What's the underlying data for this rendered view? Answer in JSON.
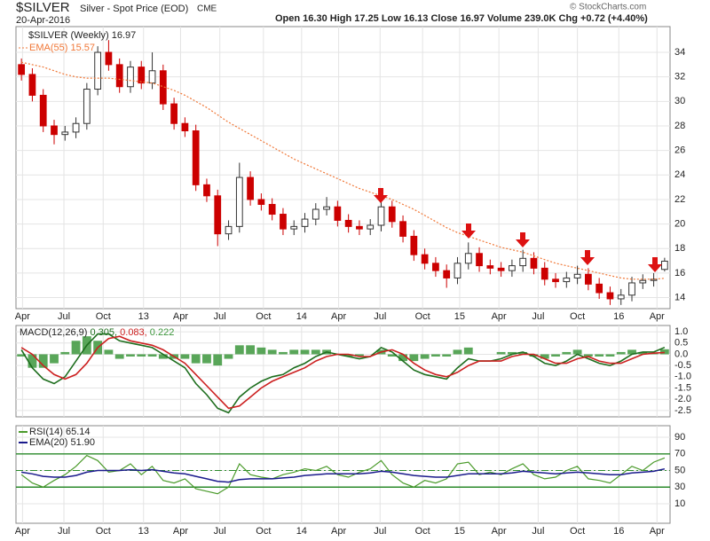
{
  "chart_data": [
    {
      "type": "candlestick",
      "title": "$SILVER",
      "subtitle": "Silver - Spot Price (EOD)",
      "exchange": "CME",
      "date": "20-Apr-2016",
      "quote": "Open 16.30  High 17.25  Low 16.13  Close 16.97  Volume 239.0K  Chg +0.72 (+4.40%)",
      "credit": "© StockCharts.com",
      "legend": "$SILVER (Weekly) 16.97",
      "color_down": "#cc0000",
      "color_up": "#333333",
      "open": [
        33.0,
        32.2,
        30.5,
        28.0,
        27.3,
        27.5,
        28.2,
        31.0,
        34.0,
        33.0,
        31.2,
        32.8,
        31.5,
        32.5,
        29.8,
        28.2,
        27.6,
        23.2,
        22.3,
        19.2,
        19.8,
        23.8,
        22.0,
        21.6,
        20.8,
        19.6,
        19.8,
        20.4,
        21.2,
        21.4,
        20.3,
        19.8,
        19.6,
        19.9,
        21.4,
        20.2,
        19.0,
        17.5,
        16.8,
        16.2,
        15.6,
        16.8,
        17.6,
        16.6,
        16.4,
        16.2,
        16.6,
        17.2,
        16.4,
        15.5,
        15.3,
        15.6,
        15.9,
        15.1,
        14.4,
        13.9,
        14.2,
        15.2,
        15.4,
        16.3
      ],
      "high": [
        33.5,
        32.7,
        31.0,
        28.5,
        28.0,
        28.7,
        31.5,
        34.5,
        35.0,
        33.5,
        33.3,
        33.3,
        34.0,
        33.0,
        30.3,
        28.7,
        28.1,
        23.7,
        22.8,
        20.3,
        25.0,
        24.3,
        22.5,
        22.1,
        21.3,
        20.3,
        20.9,
        21.7,
        22.2,
        21.9,
        20.8,
        20.3,
        20.4,
        21.9,
        21.9,
        20.7,
        19.5,
        18.0,
        17.3,
        16.7,
        17.3,
        18.5,
        18.1,
        17.1,
        16.9,
        17.1,
        17.9,
        17.7,
        16.9,
        16.0,
        16.1,
        16.6,
        16.4,
        15.6,
        14.9,
        14.7,
        15.7,
        15.9,
        16.0,
        17.25
      ],
      "low": [
        31.7,
        30.0,
        27.5,
        26.5,
        26.8,
        27.0,
        27.7,
        30.5,
        32.5,
        30.7,
        30.7,
        31.0,
        31.0,
        29.3,
        27.7,
        27.1,
        22.7,
        21.8,
        18.2,
        18.7,
        19.3,
        21.5,
        21.1,
        20.3,
        19.1,
        19.1,
        19.3,
        19.9,
        20.7,
        19.8,
        19.3,
        19.1,
        19.1,
        19.4,
        19.7,
        18.5,
        17.0,
        16.3,
        15.7,
        14.8,
        15.1,
        16.3,
        16.1,
        15.9,
        15.7,
        15.7,
        16.1,
        15.9,
        15.0,
        14.8,
        14.8,
        15.1,
        14.6,
        13.9,
        13.4,
        13.4,
        13.7,
        14.7,
        14.9,
        16.13
      ],
      "close": [
        32.2,
        30.5,
        28.0,
        27.3,
        27.5,
        28.2,
        31.0,
        34.0,
        33.0,
        31.2,
        32.8,
        31.5,
        32.5,
        29.8,
        28.2,
        27.6,
        23.2,
        22.3,
        19.2,
        19.8,
        23.8,
        22.0,
        21.6,
        20.8,
        19.6,
        19.8,
        20.4,
        21.2,
        21.4,
        20.3,
        19.8,
        19.6,
        19.9,
        21.4,
        20.2,
        19.0,
        17.5,
        16.8,
        16.2,
        15.6,
        16.8,
        17.6,
        16.6,
        16.4,
        16.2,
        16.6,
        17.2,
        16.4,
        15.5,
        15.3,
        15.6,
        15.9,
        15.1,
        14.4,
        13.9,
        14.2,
        15.2,
        15.4,
        15.5,
        16.97
      ],
      "series": [
        {
          "name": "EMA(55) 15.57",
          "color": "#f07838",
          "dash": true,
          "values": [
            33.2,
            33.0,
            32.8,
            32.5,
            32.2,
            32.0,
            31.9,
            31.9,
            31.9,
            31.8,
            31.7,
            31.6,
            31.5,
            31.2,
            30.9,
            30.5,
            30.0,
            29.5,
            28.9,
            28.3,
            27.8,
            27.3,
            26.8,
            26.3,
            25.8,
            25.3,
            24.9,
            24.5,
            24.1,
            23.7,
            23.3,
            22.9,
            22.6,
            22.3,
            22.0,
            21.6,
            21.2,
            20.7,
            20.2,
            19.7,
            19.3,
            19.0,
            18.7,
            18.4,
            18.1,
            17.9,
            17.7,
            17.4,
            17.1,
            16.8,
            16.6,
            16.4,
            16.2,
            16.0,
            15.8,
            15.6,
            15.5,
            15.5,
            15.5,
            15.57
          ]
        }
      ],
      "xlim": [
        0,
        60
      ],
      "xticks": [
        {
          "value": 0.6,
          "label": "Apr"
        },
        {
          "value": 4.4,
          "label": "Jul"
        },
        {
          "value": 8.0,
          "label": "Oct"
        },
        {
          "value": 11.7,
          "label": "13"
        },
        {
          "value": 15.1,
          "label": "Apr"
        },
        {
          "value": 18.7,
          "label": "Jul"
        },
        {
          "value": 22.7,
          "label": "Oct"
        },
        {
          "value": 26.2,
          "label": "14"
        },
        {
          "value": 29.6,
          "label": "Apr"
        },
        {
          "value": 33.4,
          "label": "Jul"
        },
        {
          "value": 37.3,
          "label": "Oct"
        },
        {
          "value": 40.7,
          "label": "15"
        },
        {
          "value": 44.3,
          "label": "Apr"
        },
        {
          "value": 47.9,
          "label": "Jul"
        },
        {
          "value": 51.5,
          "label": "Oct"
        },
        {
          "value": 55.3,
          "label": "16"
        },
        {
          "value": 58.8,
          "label": "Apr"
        }
      ],
      "ylim": [
        13.1,
        36.1
      ],
      "yticks": [
        14,
        16,
        18,
        20,
        22,
        24,
        26,
        28,
        30,
        32,
        34
      ],
      "grid": true
    },
    {
      "type": "macd",
      "legend": "MACD(12,26,9)",
      "legend_values": [
        "0.305,",
        "0.083,",
        "0.222"
      ],
      "series": [
        {
          "name": "MACD",
          "color": "#1e6e1e",
          "type": "line",
          "values": [
            0.2,
            -0.6,
            -1.1,
            -1.3,
            -1.0,
            -0.3,
            0.4,
            0.9,
            0.9,
            0.6,
            0.5,
            0.4,
            0.3,
            0.0,
            -0.3,
            -0.6,
            -1.3,
            -1.8,
            -2.4,
            -2.6,
            -1.9,
            -1.5,
            -1.2,
            -1.0,
            -0.9,
            -0.6,
            -0.4,
            -0.1,
            0.1,
            0.0,
            -0.1,
            -0.2,
            -0.1,
            0.3,
            0.1,
            -0.3,
            -0.7,
            -0.9,
            -1.0,
            -1.1,
            -0.6,
            -0.2,
            -0.3,
            -0.3,
            -0.2,
            0.0,
            0.1,
            -0.1,
            -0.4,
            -0.5,
            -0.3,
            0.0,
            -0.2,
            -0.4,
            -0.5,
            -0.3,
            0.0,
            0.1,
            0.1,
            0.305
          ]
        },
        {
          "name": "Signal",
          "color": "#cc2020",
          "type": "line",
          "values": [
            0.3,
            0.0,
            -0.5,
            -0.9,
            -1.1,
            -0.9,
            -0.4,
            0.3,
            0.7,
            0.8,
            0.6,
            0.5,
            0.4,
            0.2,
            -0.1,
            -0.4,
            -0.9,
            -1.4,
            -1.9,
            -2.4,
            -2.3,
            -1.9,
            -1.5,
            -1.2,
            -1.0,
            -0.8,
            -0.6,
            -0.3,
            -0.1,
            0.0,
            0.0,
            -0.1,
            -0.1,
            0.1,
            0.2,
            0.0,
            -0.4,
            -0.7,
            -0.9,
            -1.0,
            -0.8,
            -0.5,
            -0.3,
            -0.3,
            -0.3,
            -0.1,
            0.0,
            0.0,
            -0.2,
            -0.4,
            -0.4,
            -0.2,
            -0.1,
            -0.3,
            -0.4,
            -0.4,
            -0.2,
            0.0,
            0.05,
            0.083
          ]
        },
        {
          "name": "Histogram",
          "color": "#3c963c",
          "type": "bar",
          "values": [
            -0.1,
            -0.6,
            -0.6,
            -0.4,
            0.1,
            0.6,
            0.8,
            0.6,
            0.2,
            -0.2,
            -0.1,
            -0.1,
            -0.1,
            -0.2,
            -0.2,
            -0.2,
            -0.4,
            -0.4,
            -0.5,
            -0.2,
            0.4,
            0.4,
            0.3,
            0.2,
            0.1,
            0.2,
            0.2,
            0.2,
            0.2,
            0.0,
            -0.1,
            -0.1,
            0.0,
            0.2,
            -0.1,
            -0.3,
            -0.3,
            -0.2,
            -0.1,
            -0.1,
            0.2,
            0.3,
            0.0,
            0.0,
            0.1,
            0.1,
            0.1,
            -0.1,
            -0.2,
            -0.1,
            0.1,
            0.2,
            -0.1,
            -0.1,
            -0.1,
            0.1,
            0.2,
            0.1,
            0.05,
            0.222
          ]
        }
      ],
      "xlim": [
        0,
        60
      ],
      "ylim": [
        -2.78,
        1.28
      ],
      "yticks": [
        {
          "value": 1.0,
          "label": "1.0"
        },
        {
          "value": 0.5,
          "label": "0.5"
        },
        {
          "value": 0.0,
          "label": "0.0"
        },
        {
          "value": -0.5,
          "label": "-0.5"
        },
        {
          "value": -1.0,
          "label": "-1.0"
        },
        {
          "value": -1.5,
          "label": "-1.5"
        },
        {
          "value": -2.0,
          "label": "-2.0"
        },
        {
          "value": -2.5,
          "label": "-2.5"
        }
      ],
      "grid": true
    },
    {
      "type": "rsi",
      "series": [
        {
          "name": "RSI(14) 65.14",
          "color": "#4a9a2a",
          "values": [
            45,
            35,
            30,
            38,
            45,
            55,
            68,
            62,
            48,
            50,
            58,
            45,
            55,
            38,
            35,
            40,
            28,
            25,
            22,
            30,
            58,
            45,
            42,
            40,
            45,
            48,
            52,
            50,
            55,
            45,
            42,
            48,
            52,
            62,
            45,
            35,
            30,
            38,
            35,
            40,
            58,
            60,
            45,
            48,
            45,
            52,
            58,
            45,
            40,
            42,
            50,
            55,
            40,
            38,
            35,
            45,
            55,
            50,
            60,
            65.14
          ]
        },
        {
          "name": "EMA(20) 51.90",
          "color": "#1a1a8c",
          "values": [
            48,
            46,
            43,
            42,
            42,
            44,
            48,
            50,
            50,
            50,
            51,
            50,
            51,
            49,
            47,
            46,
            43,
            40,
            37,
            36,
            39,
            40,
            40,
            40,
            41,
            42,
            44,
            45,
            46,
            46,
            46,
            46,
            47,
            49,
            48,
            46,
            44,
            43,
            42,
            42,
            44,
            46,
            46,
            46,
            46,
            47,
            49,
            48,
            47,
            46,
            47,
            48,
            47,
            46,
            45,
            45,
            47,
            48,
            49,
            51.9
          ]
        }
      ],
      "reference_lines": [
        70,
        50,
        30
      ],
      "reference_color": "#2a8a2a",
      "xlim": [
        0,
        60
      ],
      "xticks": [
        {
          "value": 0.6,
          "label": "Apr"
        },
        {
          "value": 4.4,
          "label": "Jul"
        },
        {
          "value": 8.0,
          "label": "Oct"
        },
        {
          "value": 11.7,
          "label": "13"
        },
        {
          "value": 15.1,
          "label": "Apr"
        },
        {
          "value": 18.7,
          "label": "Jul"
        },
        {
          "value": 22.7,
          "label": "Oct"
        },
        {
          "value": 26.2,
          "label": "14"
        },
        {
          "value": 29.6,
          "label": "Apr"
        },
        {
          "value": 33.4,
          "label": "Jul"
        },
        {
          "value": 37.3,
          "label": "Oct"
        },
        {
          "value": 40.7,
          "label": "15"
        },
        {
          "value": 44.3,
          "label": "Apr"
        },
        {
          "value": 47.9,
          "label": "Jul"
        },
        {
          "value": 51.5,
          "label": "Oct"
        },
        {
          "value": 55.3,
          "label": "16"
        },
        {
          "value": 58.8,
          "label": "Apr"
        }
      ],
      "ylim": [
        -13.5,
        103.9
      ],
      "yticks": [
        10,
        30,
        50,
        70,
        90
      ],
      "grid": true
    }
  ]
}
